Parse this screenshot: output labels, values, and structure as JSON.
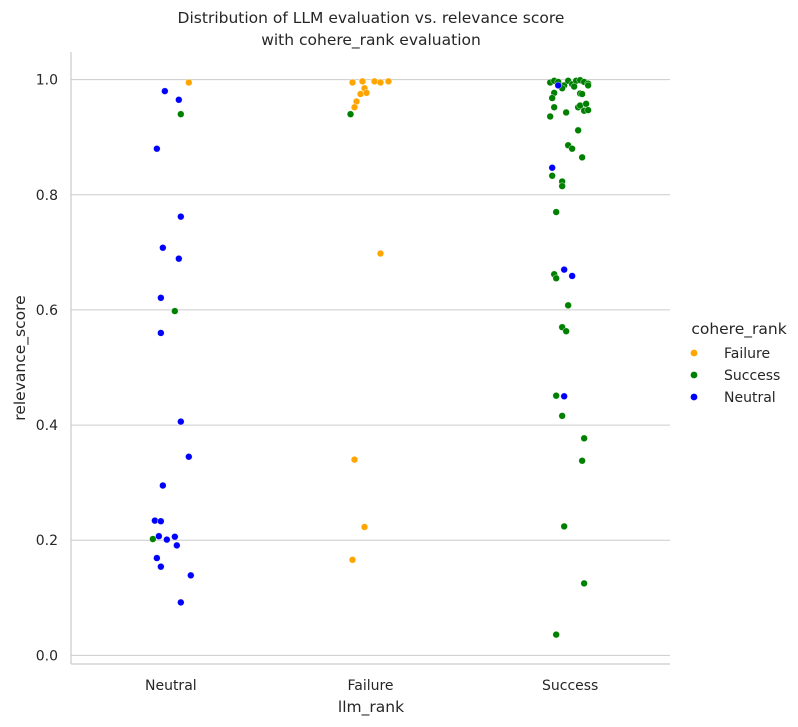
{
  "chart_data": {
    "type": "scatter",
    "title": [
      "Distribution of LLM evaluation vs. relevance score",
      "with cohere_rank evaluation"
    ],
    "xlabel": "llm_rank",
    "ylabel": "relevance_score",
    "categories": [
      "Neutral",
      "Failure",
      "Success"
    ],
    "ylim": [
      -0.015,
      1.048
    ],
    "yticks": [
      "0.0",
      "0.2",
      "0.4",
      "0.6",
      "0.8",
      "1.0"
    ],
    "grid": "horizontal",
    "legend": {
      "title": "cohere_rank",
      "placement": "right"
    },
    "colors": {
      "Failure": "#ffa500",
      "Success": "#008000",
      "Neutral": "#0000ff"
    },
    "series": [
      {
        "name": "Failure",
        "points": [
          {
            "cat": "Neutral",
            "jitter": 0.09,
            "y": 0.995
          },
          {
            "cat": "Failure",
            "jitter": -0.09,
            "y": 0.995
          },
          {
            "cat": "Failure",
            "jitter": -0.04,
            "y": 0.997
          },
          {
            "cat": "Failure",
            "jitter": 0.02,
            "y": 0.997
          },
          {
            "cat": "Failure",
            "jitter": 0.05,
            "y": 0.995
          },
          {
            "cat": "Failure",
            "jitter": 0.09,
            "y": 0.997
          },
          {
            "cat": "Failure",
            "jitter": -0.03,
            "y": 0.985
          },
          {
            "cat": "Failure",
            "jitter": -0.05,
            "y": 0.975
          },
          {
            "cat": "Failure",
            "jitter": -0.02,
            "y": 0.977
          },
          {
            "cat": "Failure",
            "jitter": -0.07,
            "y": 0.962
          },
          {
            "cat": "Failure",
            "jitter": -0.08,
            "y": 0.952
          },
          {
            "cat": "Failure",
            "jitter": 0.05,
            "y": 0.698
          },
          {
            "cat": "Failure",
            "jitter": -0.08,
            "y": 0.34
          },
          {
            "cat": "Failure",
            "jitter": -0.03,
            "y": 0.223
          },
          {
            "cat": "Failure",
            "jitter": -0.09,
            "y": 0.166
          }
        ]
      },
      {
        "name": "Success",
        "points": [
          {
            "cat": "Neutral",
            "jitter": 0.05,
            "y": 0.94
          },
          {
            "cat": "Neutral",
            "jitter": 0.02,
            "y": 0.598
          },
          {
            "cat": "Neutral",
            "jitter": -0.09,
            "y": 0.202
          },
          {
            "cat": "Failure",
            "jitter": -0.1,
            "y": 0.94
          },
          {
            "cat": "Success",
            "jitter": -0.1,
            "y": 0.995
          },
          {
            "cat": "Success",
            "jitter": -0.08,
            "y": 0.998
          },
          {
            "cat": "Success",
            "jitter": -0.06,
            "y": 0.996
          },
          {
            "cat": "Success",
            "jitter": -0.03,
            "y": 0.99
          },
          {
            "cat": "Success",
            "jitter": -0.01,
            "y": 0.998
          },
          {
            "cat": "Success",
            "jitter": 0.01,
            "y": 0.992
          },
          {
            "cat": "Success",
            "jitter": 0.03,
            "y": 0.998
          },
          {
            "cat": "Success",
            "jitter": 0.05,
            "y": 0.999
          },
          {
            "cat": "Success",
            "jitter": 0.07,
            "y": 0.996
          },
          {
            "cat": "Success",
            "jitter": 0.09,
            "y": 0.993
          },
          {
            "cat": "Success",
            "jitter": 0.09,
            "y": 0.99
          },
          {
            "cat": "Success",
            "jitter": -0.04,
            "y": 0.985
          },
          {
            "cat": "Success",
            "jitter": 0.02,
            "y": 0.988
          },
          {
            "cat": "Success",
            "jitter": 0.05,
            "y": 0.976
          },
          {
            "cat": "Success",
            "jitter": 0.06,
            "y": 0.975
          },
          {
            "cat": "Success",
            "jitter": -0.08,
            "y": 0.977
          },
          {
            "cat": "Success",
            "jitter": -0.09,
            "y": 0.968
          },
          {
            "cat": "Success",
            "jitter": -0.08,
            "y": 0.952
          },
          {
            "cat": "Success",
            "jitter": -0.02,
            "y": 0.943
          },
          {
            "cat": "Success",
            "jitter": 0.04,
            "y": 0.952
          },
          {
            "cat": "Success",
            "jitter": 0.05,
            "y": 0.955
          },
          {
            "cat": "Success",
            "jitter": 0.07,
            "y": 0.946
          },
          {
            "cat": "Success",
            "jitter": 0.08,
            "y": 0.958
          },
          {
            "cat": "Success",
            "jitter": 0.09,
            "y": 0.947
          },
          {
            "cat": "Success",
            "jitter": -0.1,
            "y": 0.936
          },
          {
            "cat": "Success",
            "jitter": 0.04,
            "y": 0.912
          },
          {
            "cat": "Success",
            "jitter": -0.01,
            "y": 0.886
          },
          {
            "cat": "Success",
            "jitter": 0.01,
            "y": 0.88
          },
          {
            "cat": "Success",
            "jitter": 0.06,
            "y": 0.865
          },
          {
            "cat": "Success",
            "jitter": -0.09,
            "y": 0.833
          },
          {
            "cat": "Success",
            "jitter": -0.04,
            "y": 0.823
          },
          {
            "cat": "Success",
            "jitter": -0.04,
            "y": 0.815
          },
          {
            "cat": "Success",
            "jitter": -0.07,
            "y": 0.77
          },
          {
            "cat": "Success",
            "jitter": -0.08,
            "y": 0.662
          },
          {
            "cat": "Success",
            "jitter": -0.07,
            "y": 0.655
          },
          {
            "cat": "Success",
            "jitter": -0.01,
            "y": 0.608
          },
          {
            "cat": "Success",
            "jitter": -0.04,
            "y": 0.57
          },
          {
            "cat": "Success",
            "jitter": -0.02,
            "y": 0.563
          },
          {
            "cat": "Success",
            "jitter": -0.07,
            "y": 0.451
          },
          {
            "cat": "Success",
            "jitter": -0.04,
            "y": 0.416
          },
          {
            "cat": "Success",
            "jitter": 0.07,
            "y": 0.377
          },
          {
            "cat": "Success",
            "jitter": 0.06,
            "y": 0.338
          },
          {
            "cat": "Success",
            "jitter": -0.03,
            "y": 0.224
          },
          {
            "cat": "Success",
            "jitter": 0.07,
            "y": 0.125
          },
          {
            "cat": "Success",
            "jitter": -0.07,
            "y": 0.036
          }
        ]
      },
      {
        "name": "Neutral",
        "points": [
          {
            "cat": "Neutral",
            "jitter": -0.03,
            "y": 0.98
          },
          {
            "cat": "Neutral",
            "jitter": 0.04,
            "y": 0.965
          },
          {
            "cat": "Neutral",
            "jitter": -0.07,
            "y": 0.88
          },
          {
            "cat": "Neutral",
            "jitter": 0.05,
            "y": 0.762
          },
          {
            "cat": "Neutral",
            "jitter": -0.04,
            "y": 0.708
          },
          {
            "cat": "Neutral",
            "jitter": 0.04,
            "y": 0.689
          },
          {
            "cat": "Neutral",
            "jitter": -0.05,
            "y": 0.621
          },
          {
            "cat": "Neutral",
            "jitter": -0.05,
            "y": 0.56
          },
          {
            "cat": "Neutral",
            "jitter": 0.05,
            "y": 0.406
          },
          {
            "cat": "Neutral",
            "jitter": 0.09,
            "y": 0.345
          },
          {
            "cat": "Neutral",
            "jitter": -0.04,
            "y": 0.295
          },
          {
            "cat": "Neutral",
            "jitter": -0.08,
            "y": 0.234
          },
          {
            "cat": "Neutral",
            "jitter": -0.05,
            "y": 0.233
          },
          {
            "cat": "Neutral",
            "jitter": -0.06,
            "y": 0.207
          },
          {
            "cat": "Neutral",
            "jitter": -0.02,
            "y": 0.201
          },
          {
            "cat": "Neutral",
            "jitter": 0.02,
            "y": 0.206
          },
          {
            "cat": "Neutral",
            "jitter": 0.03,
            "y": 0.191
          },
          {
            "cat": "Neutral",
            "jitter": -0.07,
            "y": 0.169
          },
          {
            "cat": "Neutral",
            "jitter": -0.05,
            "y": 0.154
          },
          {
            "cat": "Neutral",
            "jitter": 0.1,
            "y": 0.139
          },
          {
            "cat": "Neutral",
            "jitter": 0.05,
            "y": 0.092
          },
          {
            "cat": "Success",
            "jitter": -0.09,
            "y": 0.847
          },
          {
            "cat": "Success",
            "jitter": -0.06,
            "y": 0.99
          },
          {
            "cat": "Success",
            "jitter": -0.03,
            "y": 0.67
          },
          {
            "cat": "Success",
            "jitter": 0.01,
            "y": 0.659
          },
          {
            "cat": "Success",
            "jitter": -0.03,
            "y": 0.45
          }
        ]
      }
    ]
  }
}
